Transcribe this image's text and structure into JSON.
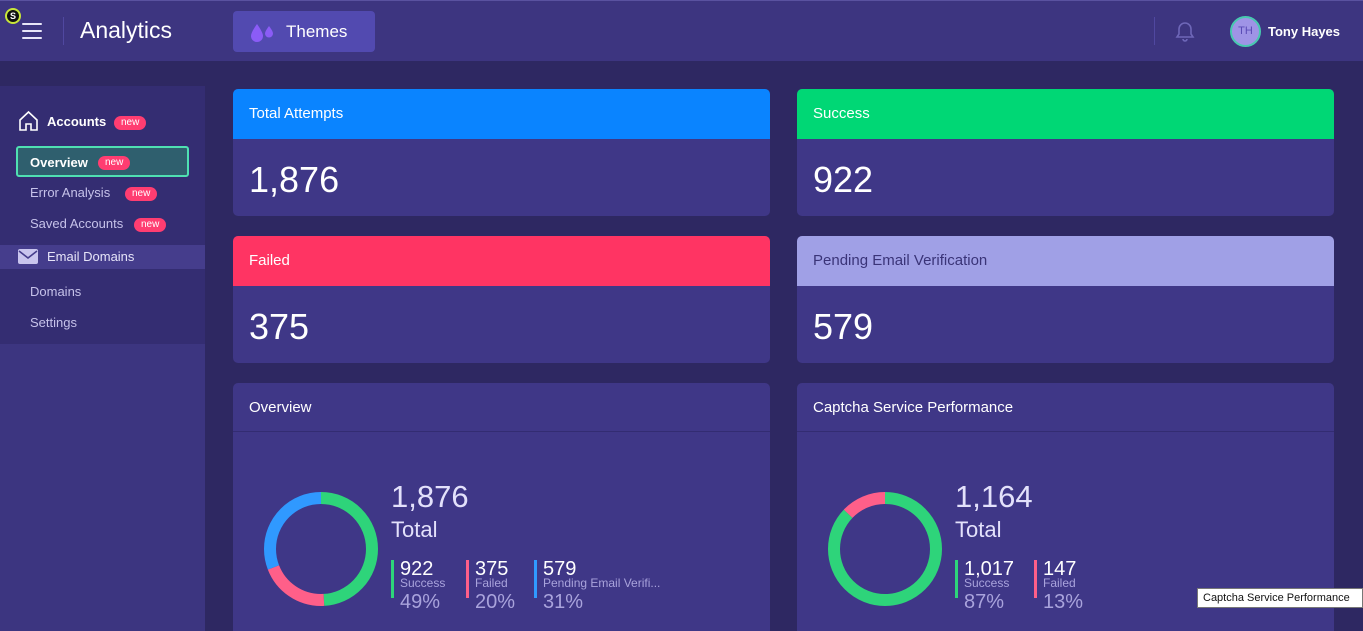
{
  "header": {
    "title": "Analytics",
    "themes_label": "Themes",
    "user": {
      "initials": "TH",
      "name": "Tony Hayes"
    },
    "ext_badge": "S"
  },
  "sidebar": {
    "accounts": {
      "label": "Accounts",
      "badge": "new"
    },
    "overview": {
      "label": "Overview",
      "badge": "new"
    },
    "error_analysis": {
      "label": "Error Analysis",
      "badge": "new"
    },
    "saved_accounts": {
      "label": "Saved Accounts",
      "badge": "new"
    },
    "email_domains": {
      "label": "Email Domains"
    },
    "domains": {
      "label": "Domains"
    },
    "settings": {
      "label": "Settings"
    }
  },
  "stats": {
    "total": {
      "title": "Total Attempts",
      "value": "1,876",
      "color": "#0a84ff"
    },
    "success": {
      "title": "Success",
      "value": "922",
      "color": "#00d775"
    },
    "failed": {
      "title": "Failed",
      "value": "375",
      "color": "#ff3463"
    },
    "pending": {
      "title": "Pending Email Verification",
      "value": "579",
      "color": "#a0a0e6"
    }
  },
  "overview": {
    "title": "Overview",
    "total": "1,876",
    "total_label": "Total",
    "legend": [
      {
        "num": "922",
        "name": "Success",
        "pct": "49%",
        "color": "#2ed47a"
      },
      {
        "num": "375",
        "name": "Failed",
        "pct": "20%",
        "color": "#ff5f89"
      },
      {
        "num": "579",
        "name": "Pending Email Verifi...",
        "pct": "31%",
        "color": "#3099ff"
      }
    ],
    "donut_shares": [
      0.49,
      0.2,
      0.31
    ]
  },
  "captcha": {
    "title": "Captcha Service Performance",
    "total": "1,164",
    "total_label": "Total",
    "legend": [
      {
        "num": "1,017",
        "name": "Success",
        "pct": "87%",
        "color": "#2ed47a"
      },
      {
        "num": "147",
        "name": "Failed",
        "pct": "13%",
        "color": "#ff5f89"
      }
    ],
    "donut_shares": [
      0.87,
      0.13
    ]
  },
  "tooltip": "Captcha Service Performance"
}
